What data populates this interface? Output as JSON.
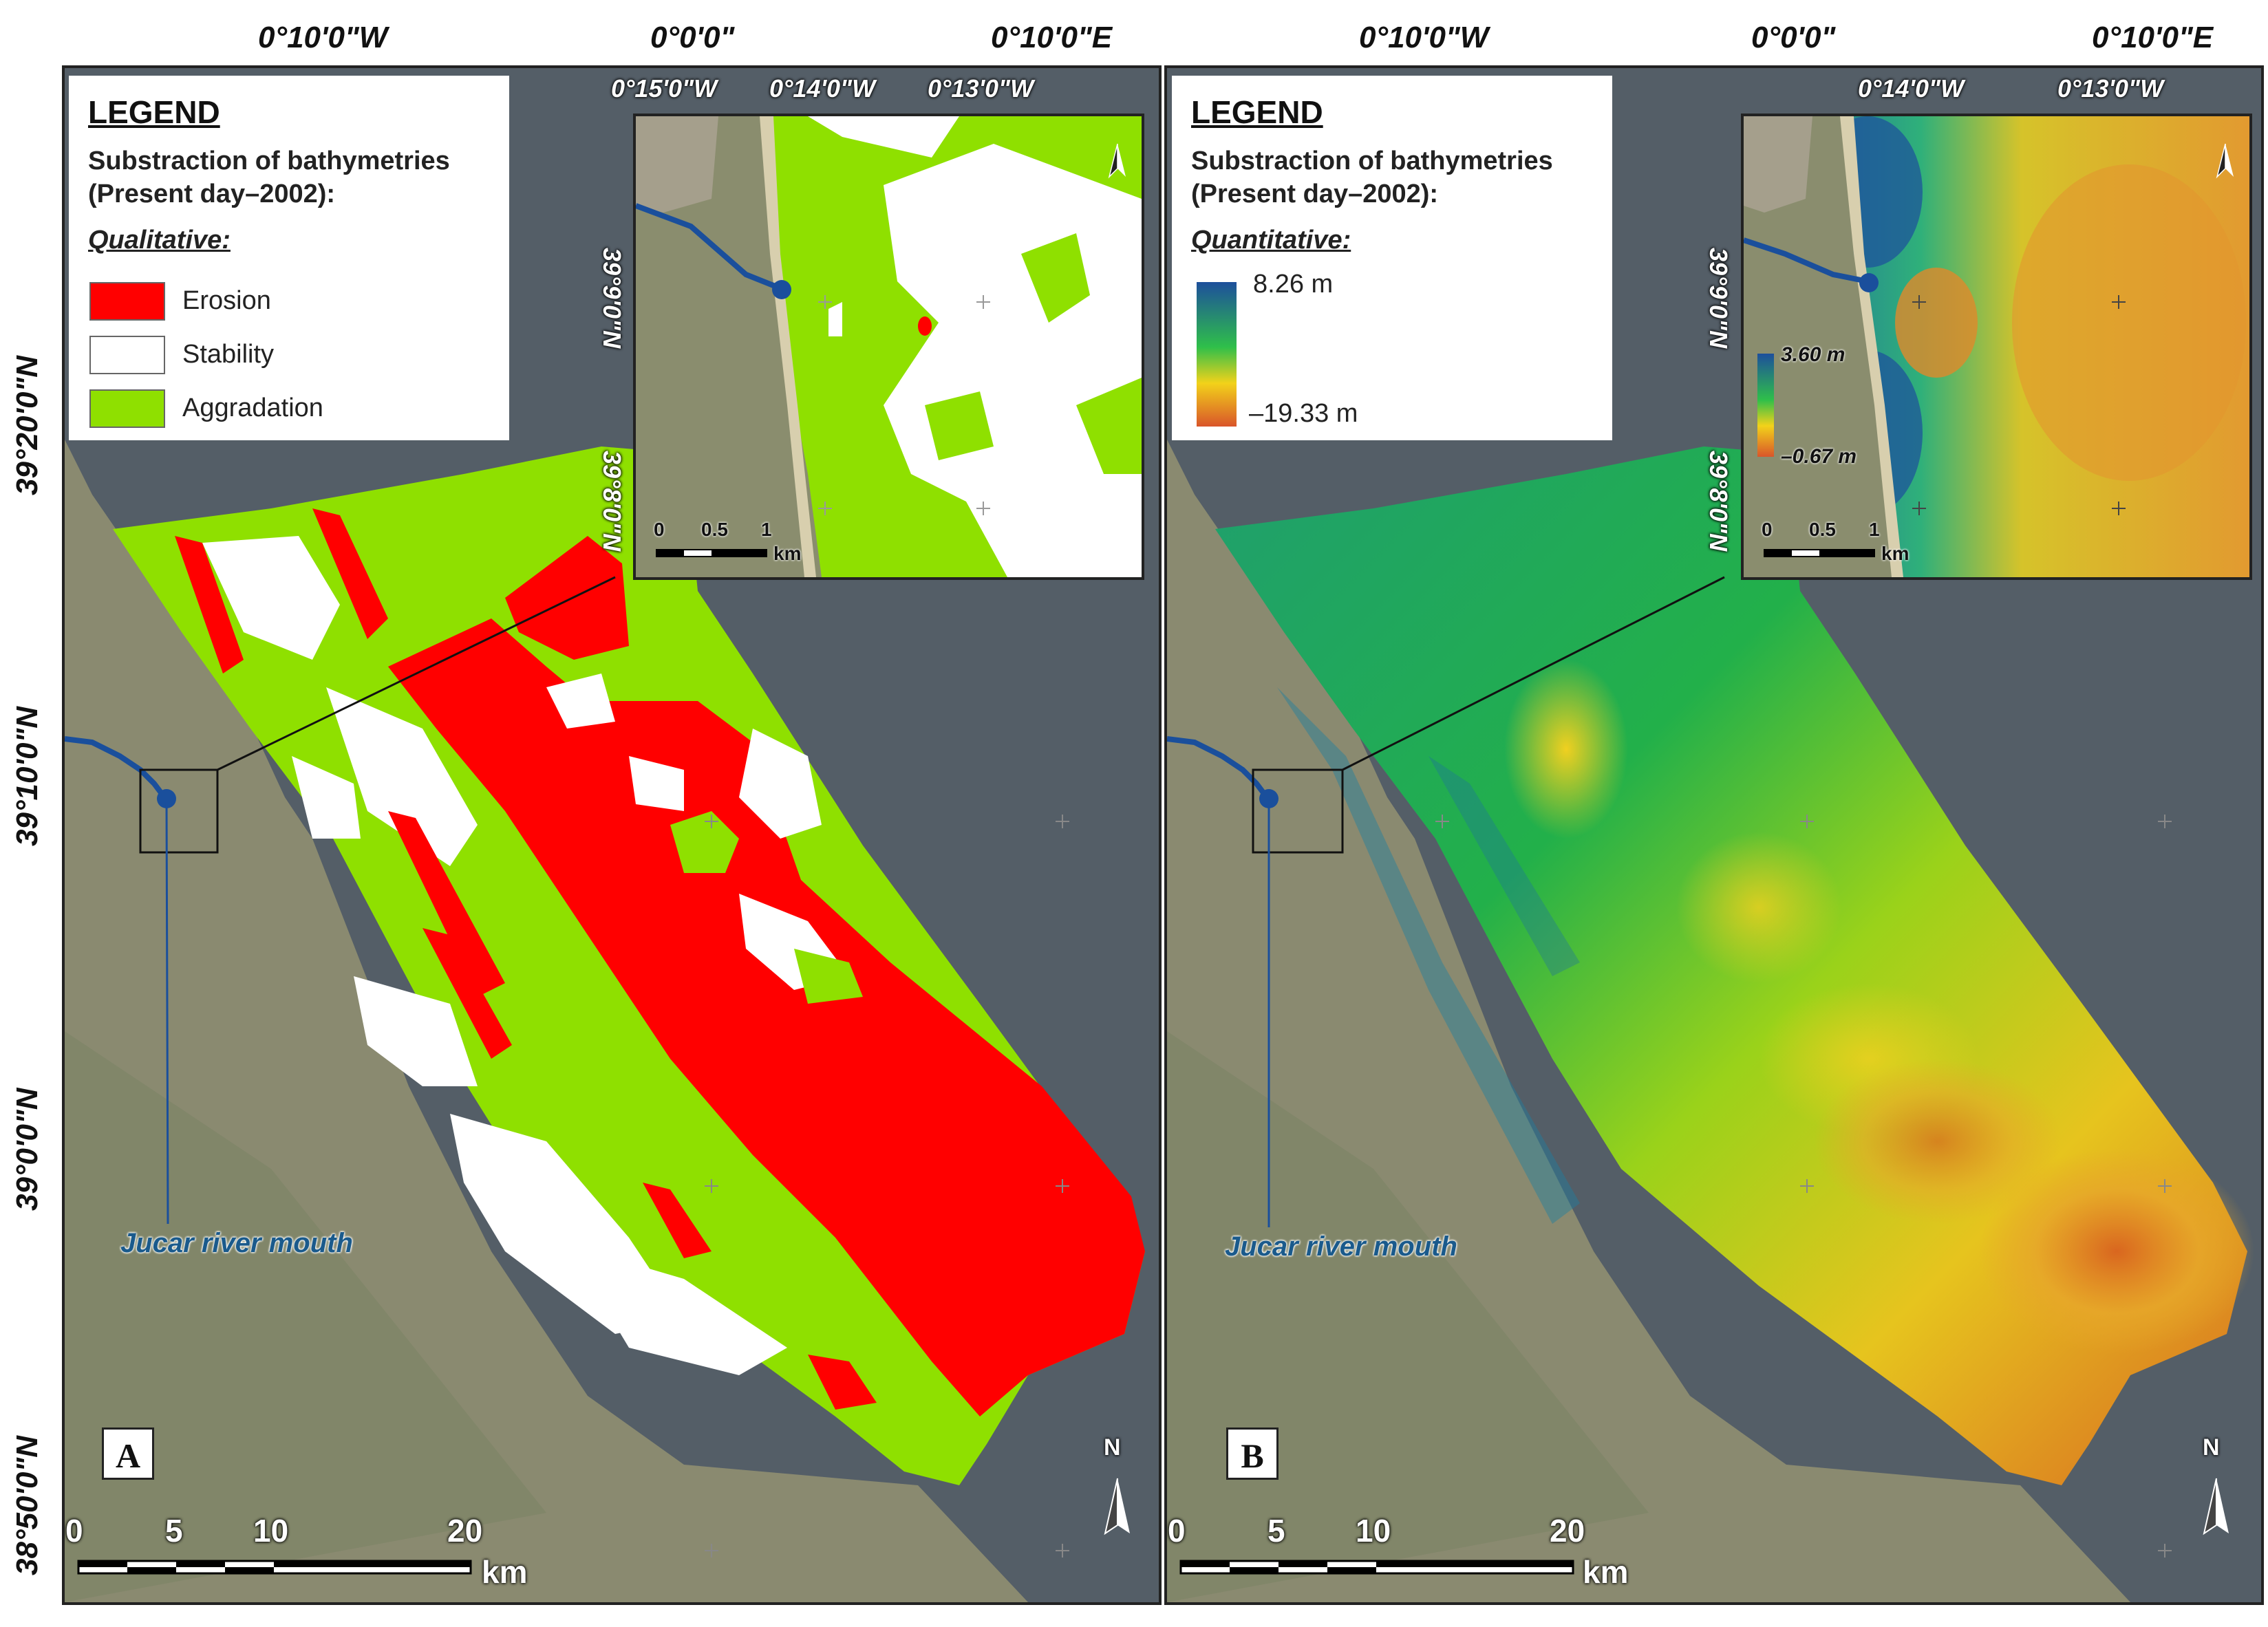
{
  "coordinates": {
    "top_left_panel": [
      "0°10'0\"W",
      "0°0'0\"",
      "0°10'0\"E"
    ],
    "top_right_panel": [
      "0°10'0\"W",
      "0°0'0\"",
      "0°10'0\"E"
    ],
    "left_axis": [
      "39°20'0\"N",
      "39°10'0\"N",
      "39°0'0\"N",
      "38°50'0\"N"
    ]
  },
  "panel_a": {
    "letter": "A",
    "legend": {
      "title": "LEGEND",
      "subtitle_line1": "Substraction of bathymetries",
      "subtitle_line2": "(Present day–2002):",
      "kind": "Qualitative:",
      "items": [
        {
          "label": "Erosion",
          "color": "#ff0000"
        },
        {
          "label": "Stability",
          "color": "#ffffff"
        },
        {
          "label": "Aggradation",
          "color": "#8fe000"
        }
      ]
    },
    "inset": {
      "top_labels": [
        "0°15'0\"W",
        "0°14'0\"W",
        "0°13'0\"W"
      ],
      "side_labels": [
        "39°9'0\"N",
        "39°8'0\"N"
      ],
      "scale": [
        "0",
        "0.5",
        "1",
        "km"
      ]
    },
    "river_label": "Jucar river mouth",
    "scale": [
      "0",
      "5",
      "10",
      "20",
      "km"
    ]
  },
  "panel_b": {
    "letter": "B",
    "legend": {
      "title": "LEGEND",
      "subtitle_line1": "Substraction of bathymetries",
      "subtitle_line2": "(Present day–2002):",
      "kind": "Quantitative:",
      "max_value": "8.26 m",
      "min_value": "–19.33 m"
    },
    "inset": {
      "top_labels": [
        "0°14'0\"W",
        "0°13'0\"W"
      ],
      "side_labels": [
        "39°9'0\"N",
        "39°8'0\"N"
      ],
      "colorbar_max": "3.60 m",
      "colorbar_min": "–0.67 m",
      "scale": [
        "0",
        "0.5",
        "1",
        "km"
      ]
    },
    "river_label": "Jucar river mouth",
    "scale": [
      "0",
      "5",
      "10",
      "20",
      "km"
    ]
  },
  "north_label": "N",
  "colors": {
    "sea": "#545e67",
    "erosion": "#ff0000",
    "aggradation": "#8fe000",
    "river": "#1a4f9c"
  }
}
